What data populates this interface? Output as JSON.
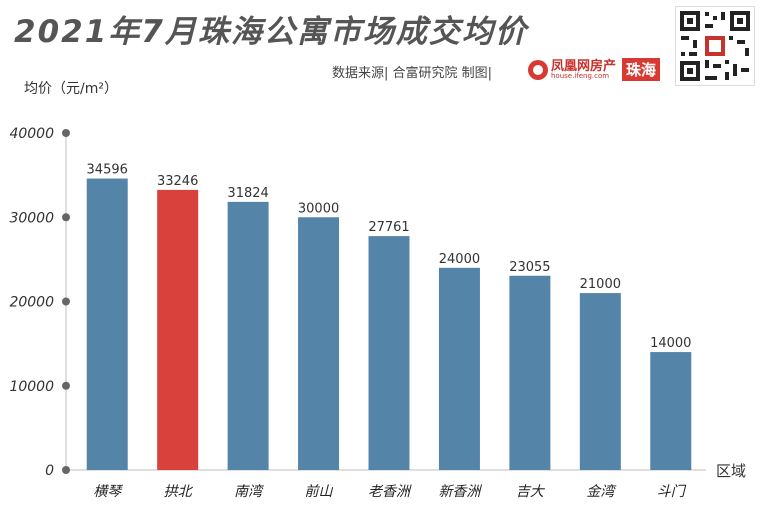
{
  "header": {
    "title": "2021年7月珠海公寓市场成交均价",
    "source": "数据来源| 合富研究院   制图|",
    "logo_name": "凤凰网房产",
    "logo_url": "house.ifeng.com",
    "logo_city": "珠海"
  },
  "colors": {
    "bar_default": "#5485a8",
    "bar_highlight": "#d9413c",
    "axis": "#bfbfbf",
    "tick_dot": "#666666"
  },
  "icons": {
    "qr": "qr-code-icon",
    "logo": "ifeng-logo-icon"
  },
  "chart_data": {
    "type": "bar",
    "title": "2021年7月珠海公寓市场成交均价",
    "ylabel": "均价（元/m²）",
    "xlabel": "区域",
    "categories": [
      "横琴",
      "拱北",
      "南湾",
      "前山",
      "老香洲",
      "新香洲",
      "吉大",
      "金湾",
      "斗门"
    ],
    "values": [
      34596,
      33246,
      31824,
      30000,
      27761,
      24000,
      23055,
      21000,
      14000
    ],
    "highlight_index": 1,
    "ylim": [
      0,
      40000
    ],
    "yticks": [
      0,
      10000,
      20000,
      30000,
      40000
    ],
    "grid": false,
    "legend": "none"
  }
}
